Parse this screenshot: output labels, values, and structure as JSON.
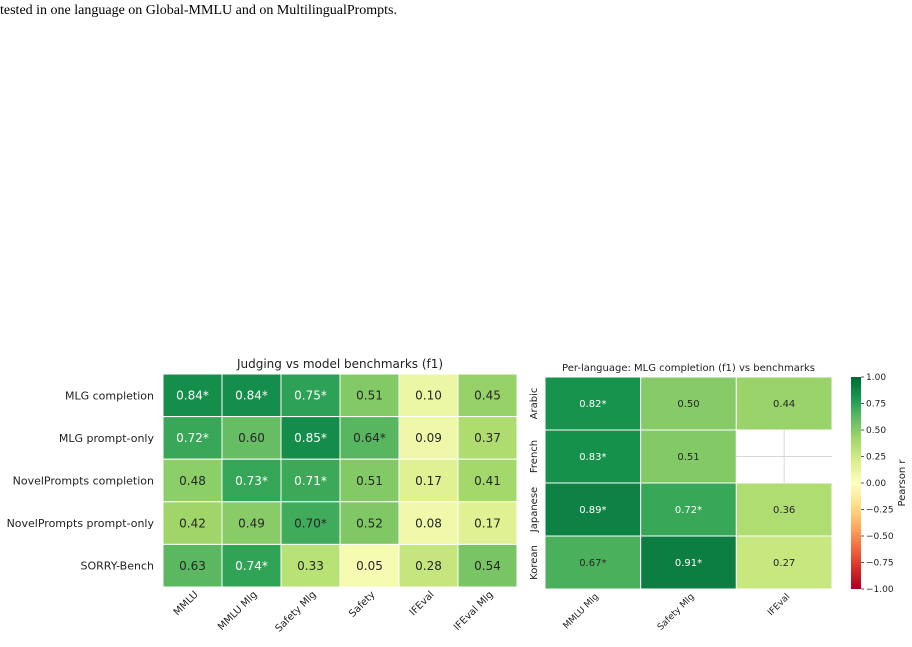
{
  "caption": "tested in one language on Global-MMLU and on MultilingualPrompts.",
  "chart_data": [
    {
      "type": "heatmap",
      "title": "Judging vs model benchmarks (f1)",
      "rows": [
        "MLG completion",
        "MLG prompt-only",
        "NovelPrompts completion",
        "NovelPrompts prompt-only",
        "SORRY-Bench"
      ],
      "columns": [
        "MMLU",
        "MMLU Mlg",
        "Safety Mlg",
        "Safety",
        "IFEval",
        "IFEval Mlg"
      ],
      "values": [
        [
          0.84,
          0.84,
          0.75,
          0.51,
          0.1,
          0.45
        ],
        [
          0.72,
          0.6,
          0.85,
          0.64,
          0.09,
          0.37
        ],
        [
          0.48,
          0.73,
          0.71,
          0.51,
          0.17,
          0.41
        ],
        [
          0.42,
          0.49,
          0.7,
          0.52,
          0.08,
          0.17
        ],
        [
          0.63,
          0.74,
          0.33,
          0.05,
          0.28,
          0.54
        ]
      ],
      "labels": [
        [
          "0.84*",
          "0.84*",
          "0.75*",
          "0.51",
          "0.10",
          "0.45"
        ],
        [
          "0.72*",
          "0.60",
          "0.85*",
          "0.64*",
          "0.09",
          "0.37"
        ],
        [
          "0.48",
          "0.73*",
          "0.71*",
          "0.51",
          "0.17",
          "0.41"
        ],
        [
          "0.42",
          "0.49",
          "0.70*",
          "0.52",
          "0.08",
          "0.17"
        ],
        [
          "0.63",
          "0.74*",
          "0.33",
          "0.05",
          "0.28",
          "0.54"
        ]
      ],
      "vmin": -1,
      "vmax": 1,
      "colormap": "RdYlGn"
    },
    {
      "type": "heatmap",
      "title": "Per-language: MLG completion (f1) vs benchmarks",
      "rows": [
        "Arabic",
        "French",
        "Japanese",
        "Korean"
      ],
      "columns": [
        "MMLU Mlg",
        "Safety Mlg",
        "IFEval"
      ],
      "values": [
        [
          0.82,
          0.5,
          0.44
        ],
        [
          0.83,
          0.51,
          null
        ],
        [
          0.89,
          0.72,
          0.36
        ],
        [
          0.67,
          0.91,
          0.27
        ]
      ],
      "labels": [
        [
          "0.82*",
          "0.50",
          "0.44"
        ],
        [
          "0.83*",
          "0.51",
          ""
        ],
        [
          "0.89*",
          "0.72*",
          "0.36"
        ],
        [
          "0.67*",
          "0.91*",
          "0.27"
        ]
      ],
      "vmin": -1,
      "vmax": 1,
      "colormap": "RdYlGn",
      "colorbar": {
        "label": "Pearson r",
        "ticks": [
          "1.00",
          "0.75",
          "0.50",
          "0.25",
          "0.00",
          "−0.25",
          "−0.50",
          "−0.75",
          "−1.00"
        ]
      }
    }
  ]
}
